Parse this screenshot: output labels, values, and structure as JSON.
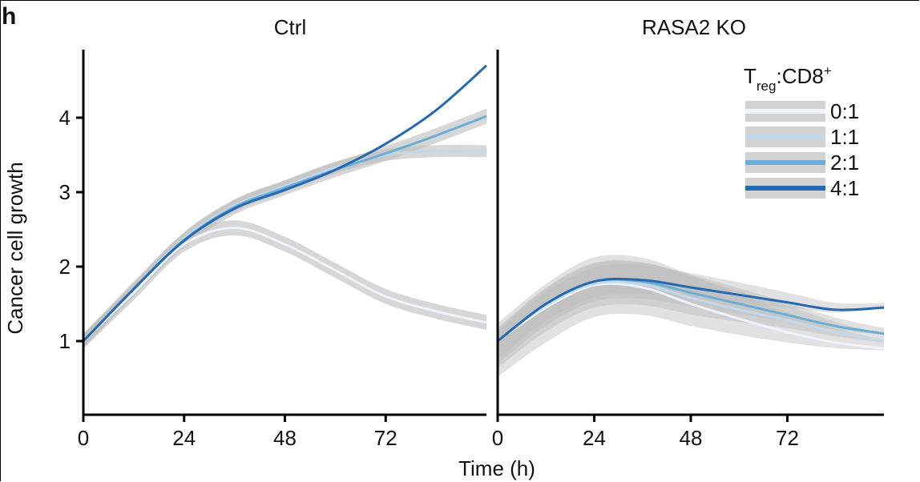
{
  "panel_letter": "h",
  "chart_data": {
    "type": "line",
    "xlabel": "Time (h)",
    "ylabel": "Cancer cell growth",
    "xlim": [
      0,
      96
    ],
    "ylim": [
      0.1,
      5.0
    ],
    "xticks": [
      0,
      24,
      48,
      72
    ],
    "yticks": [
      1,
      2,
      3,
      4
    ],
    "grid": false,
    "legend": {
      "title_main": "T",
      "title_sub": "reg",
      "title_rest": ":CD8",
      "title_sup": "+",
      "placement": "top-right of RASA2 KO panel",
      "entries": [
        {
          "label": "0:1",
          "color": "#eef3fb"
        },
        {
          "label": "1:1",
          "color": "#c3d9eb"
        },
        {
          "label": "2:1",
          "color": "#6aaed6"
        },
        {
          "label": "4:1",
          "color": "#2469b1"
        }
      ]
    },
    "band_color": "#bdbdbd",
    "panels": [
      {
        "title": "Ctrl",
        "x": [
          0,
          12,
          24,
          36,
          48,
          60,
          72,
          84,
          96
        ],
        "series": [
          {
            "name": "0:1",
            "values": [
              1.0,
              1.65,
              2.3,
              2.52,
              2.3,
              1.95,
              1.6,
              1.4,
              1.25
            ],
            "ci": 0.1
          },
          {
            "name": "1:1",
            "values": [
              1.0,
              1.7,
              2.38,
              2.82,
              3.08,
              3.33,
              3.5,
              3.55,
              3.55
            ],
            "ci": 0.08
          },
          {
            "name": "2:1",
            "values": [
              1.0,
              1.7,
              2.36,
              2.8,
              3.06,
              3.3,
              3.52,
              3.76,
              4.02
            ],
            "ci": 0.1
          },
          {
            "name": "4:1",
            "values": [
              1.0,
              1.7,
              2.35,
              2.78,
              3.03,
              3.3,
              3.65,
              4.1,
              4.7
            ],
            "ci": 0.0
          }
        ]
      },
      {
        "title": "RASA2 KO",
        "x": [
          0,
          12,
          24,
          36,
          48,
          60,
          72,
          84,
          96
        ],
        "series": [
          {
            "name": "0:1",
            "values": [
              1.0,
              1.45,
              1.75,
              1.72,
              1.5,
              1.3,
              1.12,
              0.98,
              0.9
            ],
            "ci": 0.4
          },
          {
            "name": "1:1",
            "values": [
              1.0,
              1.48,
              1.77,
              1.76,
              1.58,
              1.42,
              1.28,
              1.12,
              1.0
            ],
            "ci": 0.3
          },
          {
            "name": "2:1",
            "values": [
              1.0,
              1.5,
              1.8,
              1.8,
              1.65,
              1.5,
              1.35,
              1.2,
              1.1
            ],
            "ci": 0.25
          },
          {
            "name": "4:1",
            "values": [
              1.0,
              1.5,
              1.8,
              1.82,
              1.72,
              1.62,
              1.52,
              1.42,
              1.45
            ],
            "ci": 0.2
          }
        ]
      }
    ]
  }
}
